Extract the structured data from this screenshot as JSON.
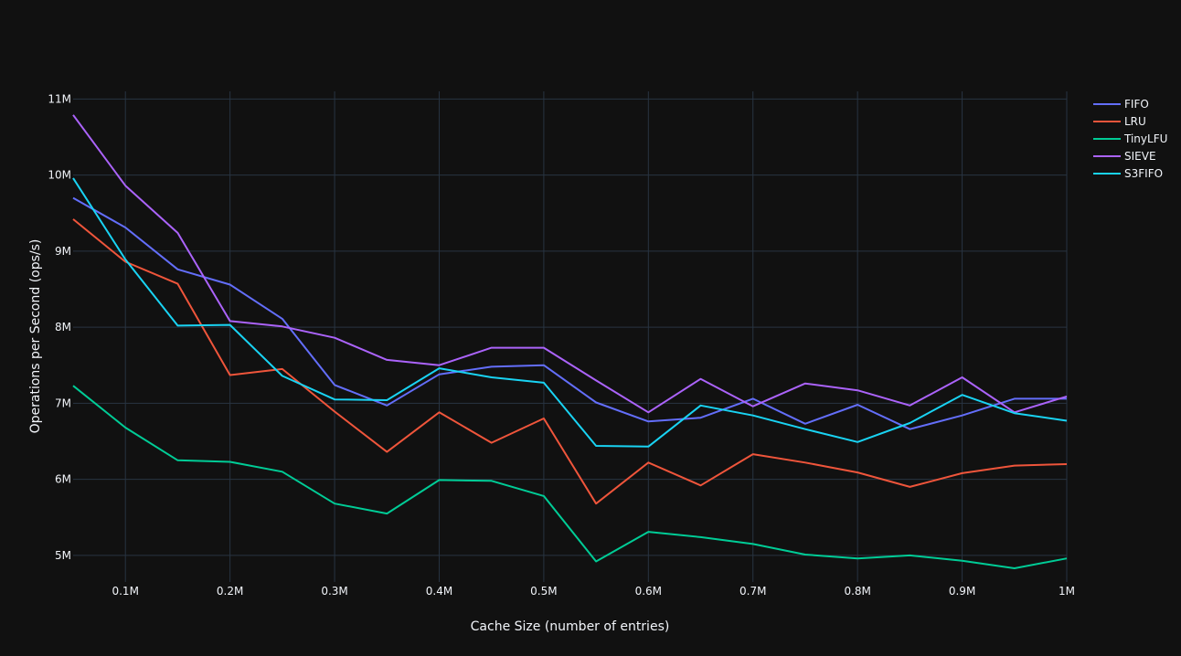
{
  "chart_data": {
    "type": "line",
    "title": "",
    "xlabel": "Cache Size (number of entries)",
    "ylabel": "Operations per Second (ops/s)",
    "xlim": [
      50000,
      1000000
    ],
    "ylim": [
      4650000,
      11100000
    ],
    "grid": true,
    "legend_position": "top-right",
    "x_ticks": [
      100000,
      200000,
      300000,
      400000,
      500000,
      600000,
      700000,
      800000,
      900000,
      1000000
    ],
    "x_tick_labels": [
      "0.1M",
      "0.2M",
      "0.3M",
      "0.4M",
      "0.5M",
      "0.6M",
      "0.7M",
      "0.8M",
      "0.9M",
      "1M"
    ],
    "y_ticks": [
      5000000,
      6000000,
      7000000,
      8000000,
      9000000,
      10000000,
      11000000
    ],
    "y_tick_labels": [
      "5M",
      "6M",
      "7M",
      "8M",
      "9M",
      "10M",
      "11M"
    ],
    "x": [
      50000,
      100000,
      150000,
      200000,
      250000,
      300000,
      350000,
      400000,
      450000,
      500000,
      550000,
      600000,
      650000,
      700000,
      750000,
      800000,
      850000,
      900000,
      950000,
      1000000
    ],
    "series": [
      {
        "name": "FIFO",
        "color": "#636efa",
        "values": [
          9700000,
          9310000,
          8760000,
          8560000,
          8110000,
          7240000,
          6970000,
          7380000,
          7480000,
          7500000,
          7010000,
          6760000,
          6810000,
          7060000,
          6730000,
          6980000,
          6660000,
          6840000,
          7060000,
          7060000
        ]
      },
      {
        "name": "LRU",
        "color": "#ef553b",
        "values": [
          9420000,
          8860000,
          8570000,
          7370000,
          7450000,
          6890000,
          6360000,
          6880000,
          6480000,
          6800000,
          5680000,
          6220000,
          5920000,
          6330000,
          6220000,
          6090000,
          5900000,
          6080000,
          6180000,
          6200000
        ]
      },
      {
        "name": "TinyLFU",
        "color": "#00cc96",
        "values": [
          7230000,
          6680000,
          6250000,
          6230000,
          6100000,
          5680000,
          5550000,
          5990000,
          5980000,
          5780000,
          4920000,
          5310000,
          5240000,
          5150000,
          5010000,
          4960000,
          5000000,
          4930000,
          4830000,
          4960000
        ]
      },
      {
        "name": "SIEVE",
        "color": "#ab63fa",
        "values": [
          10790000,
          9860000,
          9240000,
          8080000,
          8010000,
          7860000,
          7570000,
          7500000,
          7730000,
          7730000,
          7300000,
          6880000,
          7320000,
          6960000,
          7260000,
          7170000,
          6970000,
          7340000,
          6880000,
          7090000
        ]
      },
      {
        "name": "S3FIFO",
        "color": "#19d3f3",
        "values": [
          9960000,
          8890000,
          8020000,
          8030000,
          7360000,
          7050000,
          7040000,
          7460000,
          7340000,
          7270000,
          6440000,
          6430000,
          6970000,
          6840000,
          6660000,
          6490000,
          6740000,
          7110000,
          6870000,
          6770000
        ]
      }
    ]
  }
}
